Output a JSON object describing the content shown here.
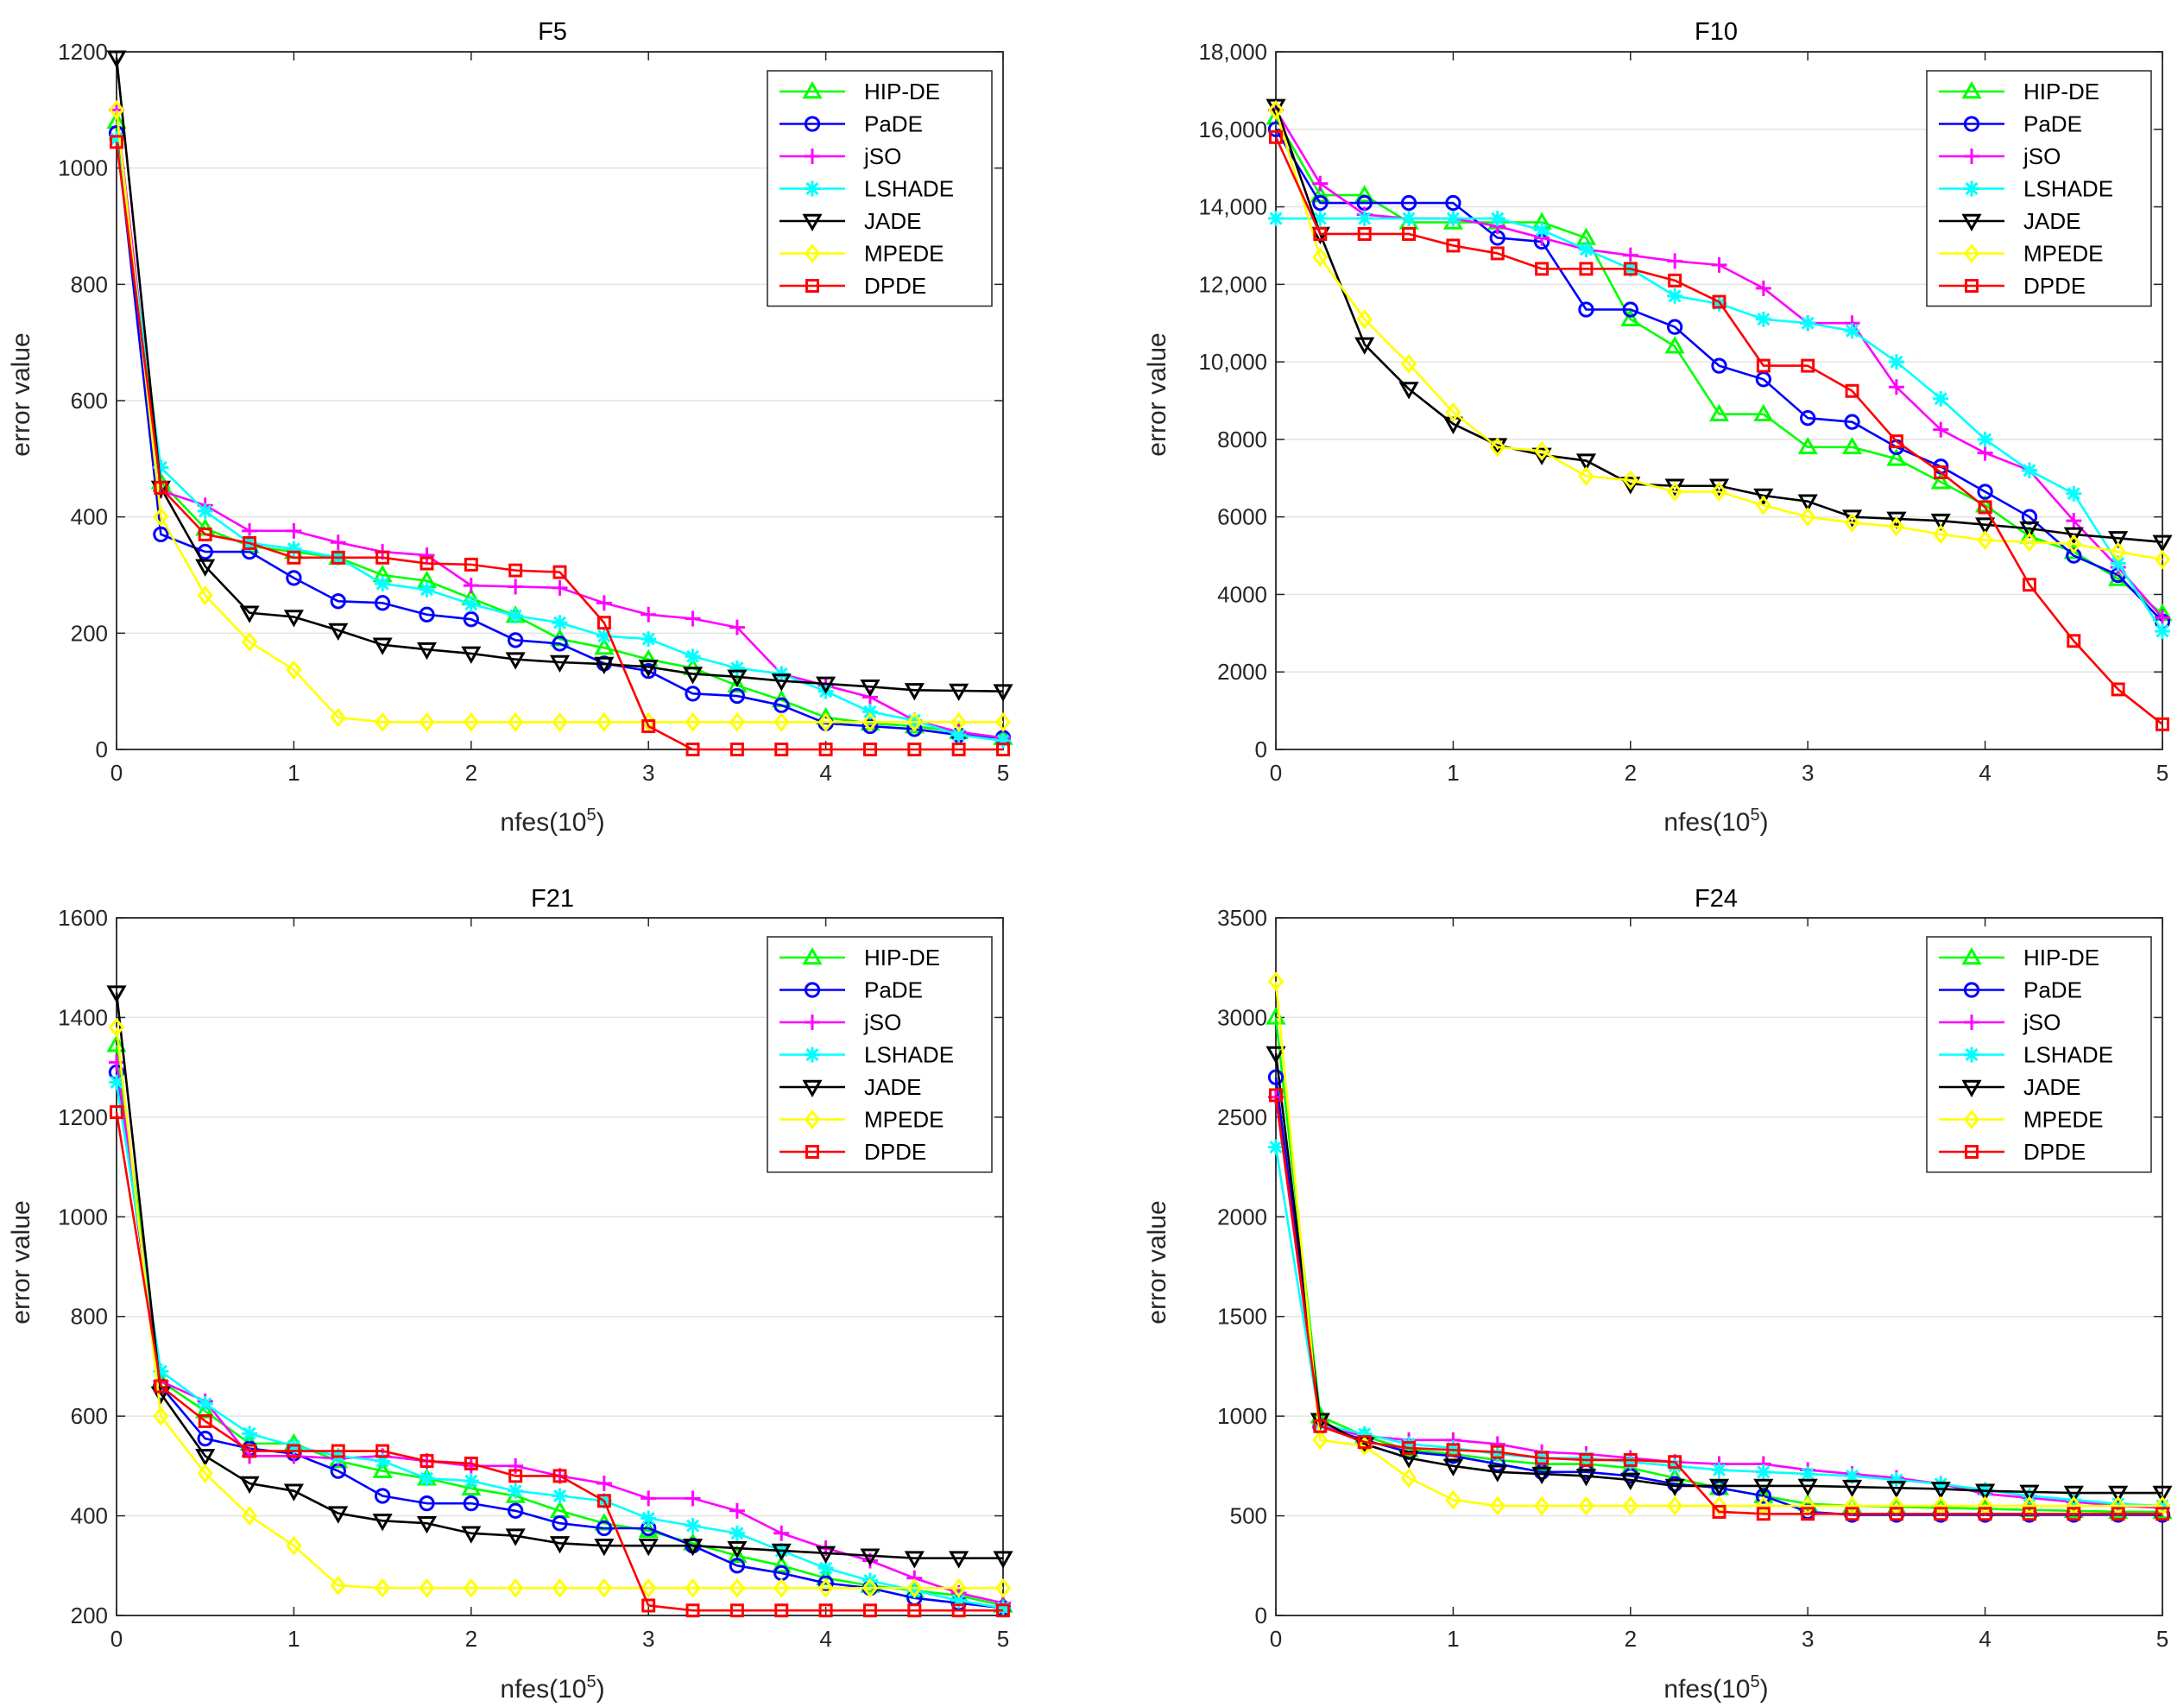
{
  "figure": {
    "background": "#ffffff",
    "grid_color": "#e3e3e3"
  },
  "x_common": [
    0,
    0.25,
    0.5,
    0.75,
    1,
    1.25,
    1.5,
    1.75,
    2,
    2.25,
    2.5,
    2.75,
    3,
    3.25,
    3.5,
    3.75,
    4,
    4.25,
    4.5,
    4.75,
    5
  ],
  "chart_data": [
    {
      "type": "line",
      "title": "F5",
      "xlabel_base": "nfes(10",
      "xlabel_exp": "5",
      "xlabel_close": ")",
      "ylabel": "error value",
      "xlim": [
        0,
        5
      ],
      "ylim": [
        0,
        1200
      ],
      "xticks": [
        0,
        1,
        2,
        3,
        4,
        5
      ],
      "yticks": [
        0,
        200,
        400,
        600,
        800,
        1000,
        1200
      ],
      "ytick_labels": [
        "0",
        "200",
        "400",
        "600",
        "800",
        "1000",
        "1200"
      ],
      "grid": true,
      "legend": "top-right",
      "series": [
        {
          "name": "HIP-DE",
          "color": "#00ff00",
          "marker": "triangle-up",
          "values": [
            1080,
            460,
            380,
            350,
            340,
            330,
            300,
            290,
            260,
            230,
            190,
            175,
            155,
            140,
            110,
            85,
            55,
            45,
            40,
            30,
            20
          ]
        },
        {
          "name": "PaDE",
          "color": "#0000ff",
          "marker": "circle",
          "values": [
            1060,
            370,
            340,
            340,
            295,
            255,
            252,
            232,
            224,
            188,
            182,
            148,
            135,
            96,
            92,
            76,
            45,
            40,
            35,
            25,
            20
          ]
        },
        {
          "name": "jSO",
          "color": "#ff00ff",
          "marker": "plus",
          "values": [
            1100,
            445,
            420,
            376,
            376,
            356,
            340,
            334,
            282,
            280,
            278,
            252,
            232,
            225,
            210,
            130,
            110,
            90,
            50,
            30,
            20
          ]
        },
        {
          "name": "LSHADE",
          "color": "#00ffff",
          "marker": "star",
          "values": [
            1050,
            485,
            410,
            355,
            345,
            330,
            285,
            275,
            250,
            230,
            218,
            195,
            190,
            160,
            140,
            130,
            100,
            65,
            50,
            25,
            15
          ]
        },
        {
          "name": "JADE",
          "color": "#000000",
          "marker": "triangle-down",
          "values": [
            1190,
            450,
            315,
            235,
            228,
            205,
            180,
            172,
            165,
            155,
            150,
            147,
            142,
            130,
            125,
            118,
            113,
            108,
            102,
            101,
            100
          ]
        },
        {
          "name": "MPEDE",
          "color": "#ffff00",
          "marker": "diamond",
          "values": [
            1100,
            400,
            265,
            185,
            137,
            55,
            47,
            47,
            47,
            47,
            47,
            47,
            47,
            47,
            47,
            47,
            47,
            47,
            47,
            47,
            47
          ]
        },
        {
          "name": "DPDE",
          "color": "#ff0000",
          "marker": "square",
          "values": [
            1045,
            450,
            370,
            355,
            330,
            330,
            330,
            320,
            318,
            308,
            305,
            218,
            40,
            0,
            0,
            0,
            0,
            0,
            0,
            0,
            0
          ]
        }
      ]
    },
    {
      "type": "line",
      "title": "F10",
      "xlabel_base": "nfes(10",
      "xlabel_exp": "5",
      "xlabel_close": ")",
      "ylabel": "error value",
      "xlim": [
        0,
        5
      ],
      "ylim": [
        0,
        18000
      ],
      "xticks": [
        0,
        1,
        2,
        3,
        4,
        5
      ],
      "yticks": [
        0,
        2000,
        4000,
        6000,
        8000,
        10000,
        12000,
        14000,
        16000,
        18000
      ],
      "ytick_labels": [
        "0",
        "2000",
        "4000",
        "6000",
        "8000",
        "10,000",
        "12,000",
        "14,000",
        "16,000",
        "18,000"
      ],
      "grid": true,
      "legend": "top-right",
      "series": [
        {
          "name": "HIP-DE",
          "color": "#00ff00",
          "marker": "triangle-up",
          "values": [
            16300,
            14300,
            14300,
            13600,
            13600,
            13600,
            13600,
            13200,
            11100,
            10400,
            8650,
            8650,
            7800,
            7800,
            7500,
            6900,
            6300,
            5500,
            5100,
            4400,
            3500
          ]
        },
        {
          "name": "PaDE",
          "color": "#0000ff",
          "marker": "circle",
          "values": [
            16000,
            14100,
            14100,
            14100,
            14100,
            13200,
            13100,
            11350,
            11350,
            10900,
            9900,
            9550,
            8550,
            8450,
            7800,
            7300,
            6650,
            6000,
            5000,
            4500,
            3300
          ]
        },
        {
          "name": "jSO",
          "color": "#ff00ff",
          "marker": "plus",
          "values": [
            16500,
            14600,
            13800,
            13700,
            13700,
            13500,
            13200,
            12900,
            12750,
            12600,
            12500,
            11900,
            11000,
            11000,
            9350,
            8250,
            7650,
            7200,
            5900,
            4700,
            3400
          ]
        },
        {
          "name": "LSHADE",
          "color": "#00ffff",
          "marker": "star",
          "values": [
            13700,
            13700,
            13700,
            13700,
            13700,
            13700,
            13400,
            12900,
            12400,
            11700,
            11500,
            11100,
            11000,
            10800,
            10000,
            9050,
            8000,
            7200,
            6600,
            4800,
            3050
          ]
        },
        {
          "name": "JADE",
          "color": "#000000",
          "marker": "triangle-down",
          "values": [
            16600,
            13300,
            10450,
            9300,
            8400,
            7850,
            7600,
            7450,
            6850,
            6800,
            6800,
            6550,
            6400,
            6000,
            5950,
            5900,
            5800,
            5700,
            5550,
            5450,
            5350
          ]
        },
        {
          "name": "MPEDE",
          "color": "#ffff00",
          "marker": "diamond",
          "values": [
            16500,
            12700,
            11100,
            9950,
            8700,
            7800,
            7700,
            7050,
            6950,
            6650,
            6650,
            6300,
            6000,
            5850,
            5750,
            5550,
            5400,
            5350,
            5300,
            5100,
            4900
          ]
        },
        {
          "name": "DPDE",
          "color": "#ff0000",
          "marker": "square",
          "values": [
            15800,
            13300,
            13300,
            13300,
            13000,
            12800,
            12400,
            12400,
            12400,
            12100,
            11550,
            9900,
            9900,
            9250,
            7950,
            7150,
            6250,
            4250,
            2800,
            1550,
            650
          ]
        }
      ]
    },
    {
      "type": "line",
      "title": "F21",
      "xlabel_base": "nfes(10",
      "xlabel_exp": "5",
      "xlabel_close": ")",
      "ylabel": "error value",
      "xlim": [
        0,
        5
      ],
      "ylim": [
        200,
        1600
      ],
      "xticks": [
        0,
        1,
        2,
        3,
        4,
        5
      ],
      "yticks": [
        200,
        400,
        600,
        800,
        1000,
        1200,
        1400,
        1600
      ],
      "ytick_labels": [
        "200",
        "400",
        "600",
        "800",
        "1000",
        "1200",
        "1400",
        "1600"
      ],
      "grid": true,
      "legend": "top-right",
      "series": [
        {
          "name": "HIP-DE",
          "color": "#00ff00",
          "marker": "triangle-up",
          "values": [
            1345,
            670,
            610,
            545,
            545,
            510,
            490,
            475,
            455,
            440,
            410,
            385,
            370,
            345,
            320,
            300,
            275,
            260,
            250,
            240,
            220
          ]
        },
        {
          "name": "PaDE",
          "color": "#0000ff",
          "marker": "circle",
          "values": [
            1290,
            660,
            555,
            535,
            525,
            490,
            440,
            425,
            425,
            410,
            385,
            375,
            375,
            340,
            300,
            285,
            265,
            255,
            235,
            225,
            215
          ]
        },
        {
          "name": "jSO",
          "color": "#ff00ff",
          "marker": "plus",
          "values": [
            1310,
            670,
            630,
            520,
            520,
            515,
            520,
            510,
            500,
            500,
            480,
            465,
            435,
            435,
            410,
            365,
            335,
            310,
            275,
            245,
            225
          ]
        },
        {
          "name": "LSHADE",
          "color": "#00ffff",
          "marker": "star",
          "values": [
            1270,
            690,
            625,
            565,
            540,
            520,
            510,
            475,
            470,
            450,
            440,
            430,
            395,
            380,
            365,
            330,
            295,
            270,
            250,
            230,
            215
          ]
        },
        {
          "name": "JADE",
          "color": "#000000",
          "marker": "triangle-down",
          "values": [
            1450,
            645,
            520,
            465,
            450,
            405,
            390,
            385,
            365,
            360,
            345,
            340,
            340,
            340,
            335,
            330,
            325,
            320,
            315,
            315,
            315
          ]
        },
        {
          "name": "MPEDE",
          "color": "#ffff00",
          "marker": "diamond",
          "values": [
            1380,
            600,
            485,
            400,
            340,
            260,
            255,
            255,
            255,
            255,
            255,
            255,
            255,
            255,
            255,
            255,
            255,
            255,
            255,
            255,
            255
          ]
        },
        {
          "name": "DPDE",
          "color": "#ff0000",
          "marker": "square",
          "values": [
            1210,
            660,
            590,
            530,
            530,
            530,
            530,
            510,
            505,
            480,
            480,
            430,
            220,
            210,
            210,
            210,
            210,
            210,
            210,
            210,
            210
          ]
        }
      ]
    },
    {
      "type": "line",
      "title": "F24",
      "xlabel_base": "nfes(10",
      "xlabel_exp": "5",
      "xlabel_close": ")",
      "ylabel": "error value",
      "xlim": [
        0,
        5
      ],
      "ylim": [
        0,
        3500
      ],
      "xticks": [
        0,
        1,
        2,
        3,
        4,
        5
      ],
      "yticks": [
        0,
        500,
        1000,
        1500,
        2000,
        2500,
        3000,
        3500
      ],
      "ytick_labels": [
        "0",
        "500",
        "1000",
        "1500",
        "2000",
        "2500",
        "3000",
        "3500"
      ],
      "grid": true,
      "legend": "top-right",
      "series": [
        {
          "name": "HIP-DE",
          "color": "#00ff00",
          "marker": "triangle-up",
          "values": [
            3000,
            1000,
            900,
            830,
            810,
            780,
            760,
            760,
            740,
            690,
            640,
            600,
            560,
            550,
            545,
            540,
            535,
            530,
            525,
            520,
            520
          ]
        },
        {
          "name": "PaDE",
          "color": "#0000ff",
          "marker": "circle",
          "values": [
            2700,
            950,
            880,
            820,
            800,
            760,
            720,
            720,
            700,
            660,
            640,
            600,
            520,
            505,
            505,
            505,
            505,
            505,
            505,
            505,
            505
          ]
        },
        {
          "name": "jSO",
          "color": "#ff00ff",
          "marker": "plus",
          "values": [
            2600,
            950,
            900,
            880,
            880,
            860,
            820,
            810,
            790,
            770,
            760,
            760,
            730,
            710,
            690,
            660,
            610,
            590,
            570,
            550,
            540
          ]
        },
        {
          "name": "LSHADE",
          "color": "#00ffff",
          "marker": "star",
          "values": [
            2350,
            960,
            910,
            860,
            840,
            810,
            790,
            790,
            770,
            750,
            730,
            720,
            710,
            700,
            680,
            660,
            630,
            600,
            580,
            560,
            550
          ]
        },
        {
          "name": "JADE",
          "color": "#000000",
          "marker": "triangle-down",
          "values": [
            2820,
            980,
            860,
            790,
            750,
            720,
            710,
            700,
            680,
            650,
            650,
            650,
            650,
            645,
            640,
            635,
            625,
            620,
            615,
            615,
            615
          ]
        },
        {
          "name": "MPEDE",
          "color": "#ffff00",
          "marker": "diamond",
          "values": [
            3180,
            880,
            850,
            690,
            580,
            550,
            550,
            550,
            550,
            550,
            550,
            550,
            550,
            550,
            550,
            550,
            550,
            550,
            550,
            550,
            550
          ]
        },
        {
          "name": "DPDE",
          "color": "#ff0000",
          "marker": "square",
          "values": [
            2610,
            950,
            870,
            840,
            830,
            820,
            790,
            780,
            780,
            770,
            520,
            510,
            510,
            510,
            510,
            510,
            510,
            510,
            510,
            510,
            510
          ]
        }
      ]
    }
  ]
}
